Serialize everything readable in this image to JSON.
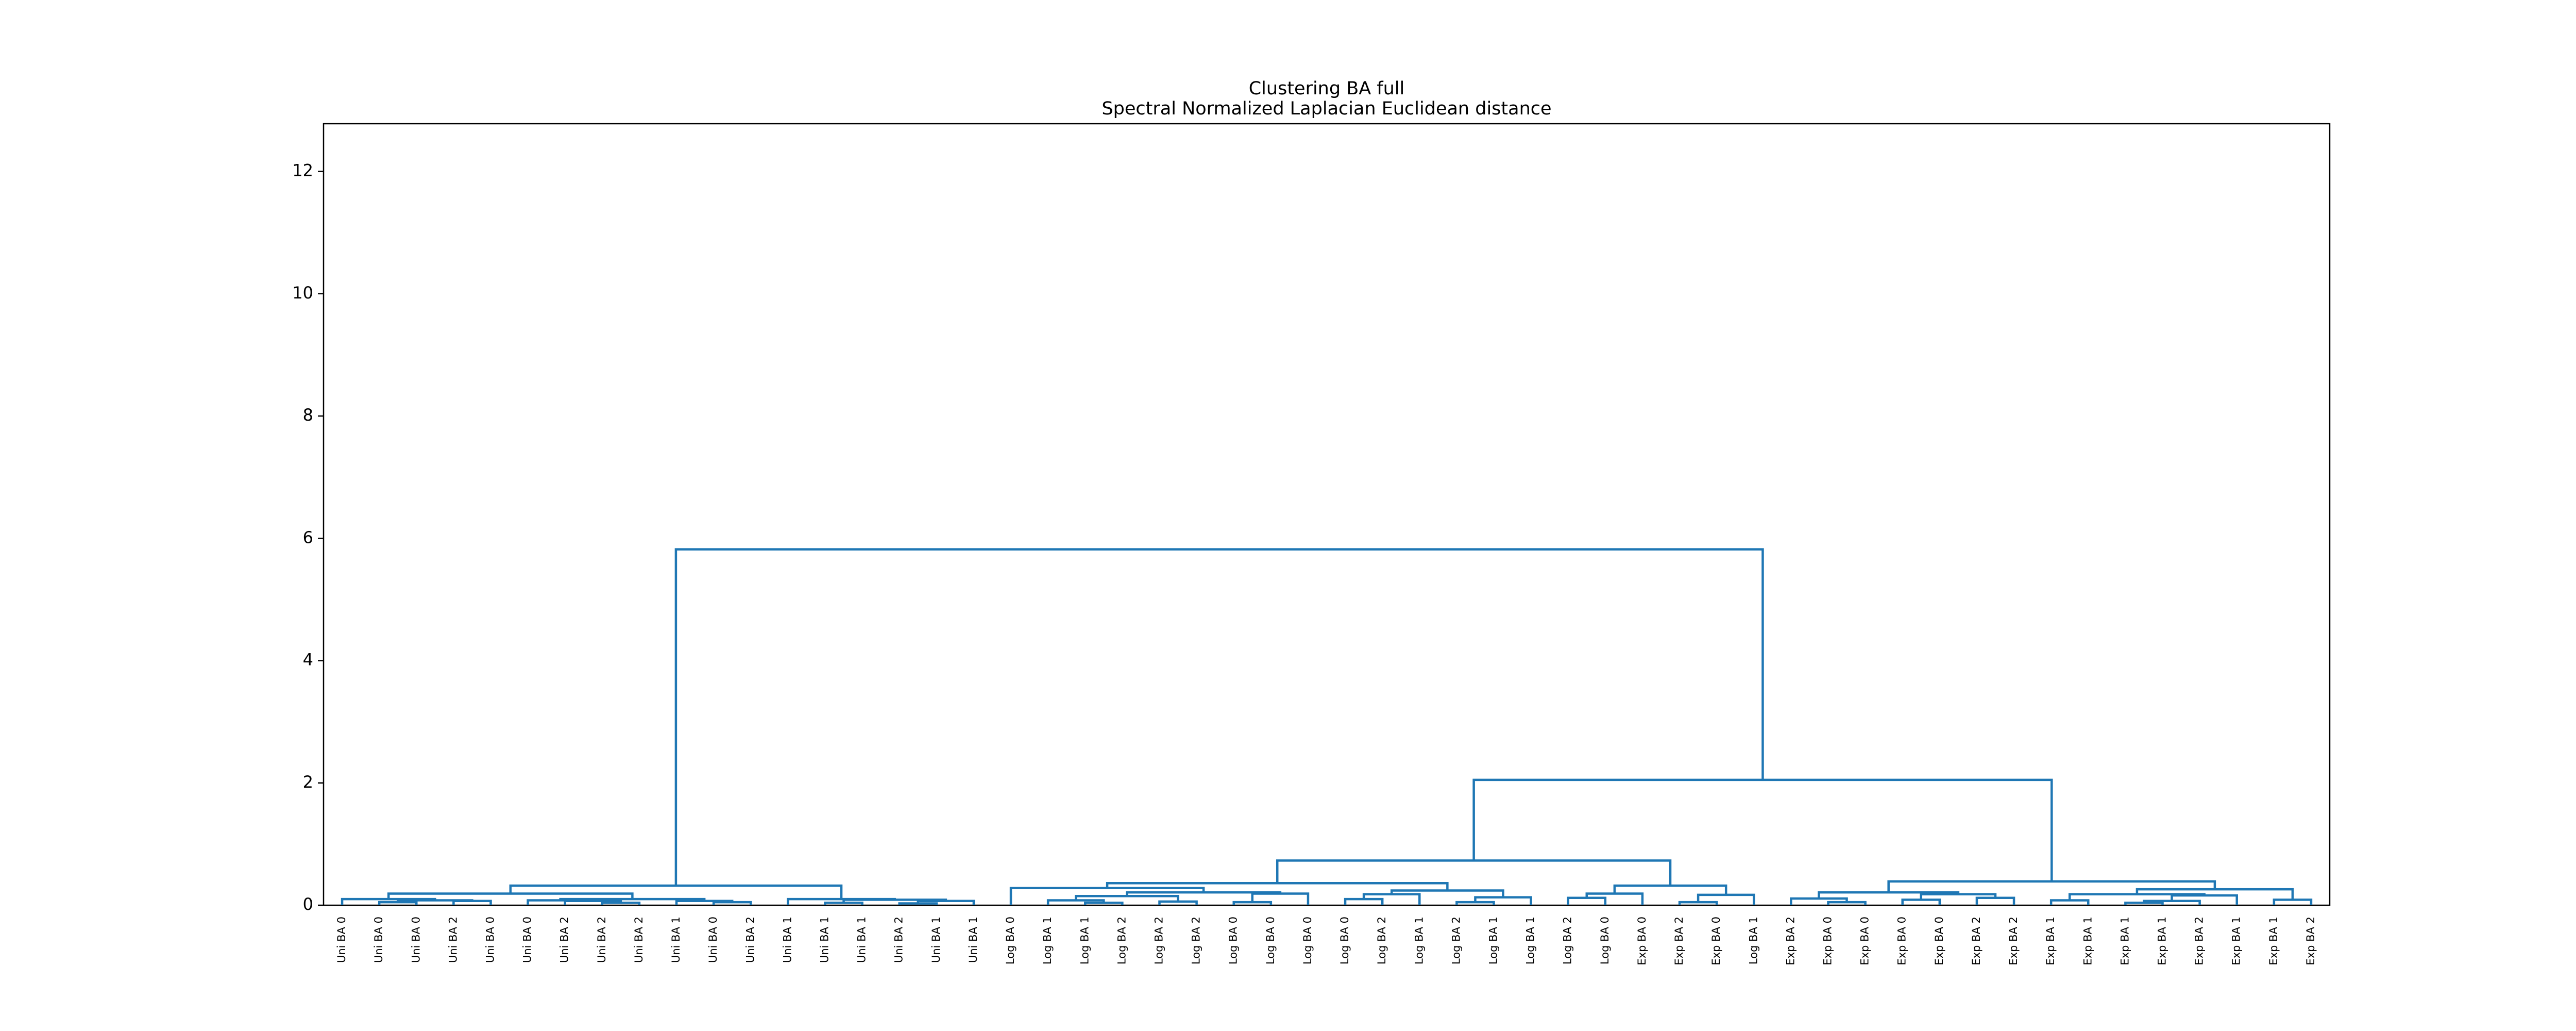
{
  "chart_data": {
    "type": "dendrogram",
    "title": "Clustering BA full",
    "subtitle": "Spectral Normalized Laplacian Euclidean distance",
    "ylim": [
      0,
      12.78
    ],
    "yticks": [
      0,
      2,
      4,
      6,
      8,
      10,
      12
    ],
    "link_color": "#1f77b4",
    "tree": {
      "height": 5.82,
      "children": [
        {
          "height": 0.32,
          "children": [
            {
              "height": 0.19,
              "children": [
                {
                  "height": 0.1,
                  "children": [
                    {
                      "label": "Uni BA 0",
                      "color": "#90ee90"
                    },
                    {
                      "height": 0.08,
                      "children": [
                        {
                          "height": 0.05,
                          "children": [
                            {
                              "label": "Uni BA 0",
                              "color": "#90ee90"
                            },
                            {
                              "label": "Uni BA 0",
                              "color": "#90ee90"
                            }
                          ]
                        },
                        {
                          "height": 0.07,
                          "children": [
                            {
                              "label": "Uni BA 2",
                              "color": "#006400"
                            },
                            {
                              "label": "Uni BA 0",
                              "color": "#90ee90"
                            }
                          ]
                        }
                      ]
                    }
                  ]
                },
                {
                  "height": 0.1,
                  "children": [
                    {
                      "height": 0.08,
                      "children": [
                        {
                          "label": "Uni BA 0",
                          "color": "#90ee90"
                        },
                        {
                          "height": 0.07,
                          "children": [
                            {
                              "label": "Uni BA 2",
                              "color": "#006400"
                            },
                            {
                              "height": 0.04,
                              "children": [
                                {
                                  "label": "Uni BA 2",
                                  "color": "#006400"
                                },
                                {
                                  "label": "Uni BA 2",
                                  "color": "#006400"
                                }
                              ]
                            }
                          ]
                        }
                      ]
                    },
                    {
                      "height": 0.07,
                      "children": [
                        {
                          "label": "Uni BA 1",
                          "color": "#008000"
                        },
                        {
                          "height": 0.05,
                          "children": [
                            {
                              "label": "Uni BA 0",
                              "color": "#90ee90"
                            },
                            {
                              "label": "Uni BA 2",
                              "color": "#006400"
                            }
                          ]
                        }
                      ]
                    }
                  ]
                }
              ]
            },
            {
              "height": 0.1,
              "children": [
                {
                  "label": "Uni BA 1",
                  "color": "#008000"
                },
                {
                  "height": 0.09,
                  "children": [
                    {
                      "height": 0.04,
                      "children": [
                        {
                          "label": "Uni BA 1",
                          "color": "#008000"
                        },
                        {
                          "label": "Uni BA 1",
                          "color": "#008000"
                        }
                      ]
                    },
                    {
                      "height": 0.07,
                      "children": [
                        {
                          "height": 0.03,
                          "children": [
                            {
                              "label": "Uni BA 2",
                              "color": "#006400"
                            },
                            {
                              "label": "Uni BA 1",
                              "color": "#008000"
                            }
                          ]
                        },
                        {
                          "label": "Uni BA 1",
                          "color": "#008000"
                        }
                      ]
                    }
                  ]
                }
              ]
            }
          ]
        },
        {
          "height": 2.05,
          "children": [
            {
              "height": 0.73,
              "children": [
                {
                  "height": 0.36,
                  "children": [
                    {
                      "height": 0.28,
                      "children": [
                        {
                          "label": "Log BA 0",
                          "color": "#add8e6"
                        },
                        {
                          "height": 0.21,
                          "children": [
                            {
                              "height": 0.15,
                              "children": [
                                {
                                  "height": 0.08,
                                  "children": [
                                    {
                                      "label": "Log BA 1",
                                      "color": "#0000ff"
                                    },
                                    {
                                      "height": 0.04,
                                      "children": [
                                        {
                                          "label": "Log BA 1",
                                          "color": "#0000ff"
                                        },
                                        {
                                          "label": "Log BA 2",
                                          "color": "#00008b"
                                        }
                                      ]
                                    }
                                  ]
                                },
                                {
                                  "height": 0.06,
                                  "children": [
                                    {
                                      "label": "Log BA 2",
                                      "color": "#00008b"
                                    },
                                    {
                                      "label": "Log BA 2",
                                      "color": "#00008b"
                                    }
                                  ]
                                }
                              ]
                            },
                            {
                              "height": 0.19,
                              "children": [
                                {
                                  "height": 0.05,
                                  "children": [
                                    {
                                      "label": "Log BA 0",
                                      "color": "#add8e6"
                                    },
                                    {
                                      "label": "Log BA 0",
                                      "color": "#add8e6"
                                    }
                                  ]
                                },
                                {
                                  "label": "Log BA 0",
                                  "color": "#add8e6"
                                }
                              ]
                            }
                          ]
                        }
                      ]
                    },
                    {
                      "height": 0.24,
                      "children": [
                        {
                          "height": 0.18,
                          "children": [
                            {
                              "height": 0.1,
                              "children": [
                                {
                                  "label": "Log BA 0",
                                  "color": "#add8e6"
                                },
                                {
                                  "label": "Log BA 2",
                                  "color": "#00008b"
                                }
                              ]
                            },
                            {
                              "label": "Log BA 1",
                              "color": "#0000ff"
                            }
                          ]
                        },
                        {
                          "height": 0.13,
                          "children": [
                            {
                              "height": 0.05,
                              "children": [
                                {
                                  "label": "Log BA 2",
                                  "color": "#00008b"
                                },
                                {
                                  "label": "Log BA 1",
                                  "color": "#0000ff"
                                }
                              ]
                            },
                            {
                              "label": "Log BA 1",
                              "color": "#0000ff"
                            }
                          ]
                        }
                      ]
                    }
                  ]
                },
                {
                  "height": 0.32,
                  "children": [
                    {
                      "height": 0.19,
                      "children": [
                        {
                          "height": 0.12,
                          "children": [
                            {
                              "label": "Log BA 2",
                              "color": "#00008b"
                            },
                            {
                              "label": "Log BA 0",
                              "color": "#add8e6"
                            }
                          ]
                        },
                        {
                          "label": "Exp BA 0",
                          "color": "#f08080"
                        }
                      ]
                    },
                    {
                      "height": 0.17,
                      "children": [
                        {
                          "height": 0.05,
                          "children": [
                            {
                              "label": "Exp BA 2",
                              "color": "#8b0000"
                            },
                            {
                              "label": "Exp BA 0",
                              "color": "#f08080"
                            }
                          ]
                        },
                        {
                          "label": "Log BA 1",
                          "color": "#0000ff"
                        }
                      ]
                    }
                  ]
                }
              ]
            },
            {
              "height": 0.39,
              "children": [
                {
                  "height": 0.21,
                  "children": [
                    {
                      "height": 0.11,
                      "children": [
                        {
                          "label": "Exp BA 2",
                          "color": "#8b0000"
                        },
                        {
                          "height": 0.05,
                          "children": [
                            {
                              "label": "Exp BA 0",
                              "color": "#f08080"
                            },
                            {
                              "label": "Exp BA 0",
                              "color": "#f08080"
                            }
                          ]
                        }
                      ]
                    },
                    {
                      "height": 0.18,
                      "children": [
                        {
                          "height": 0.09,
                          "children": [
                            {
                              "label": "Exp BA 0",
                              "color": "#f08080"
                            },
                            {
                              "label": "Exp BA 0",
                              "color": "#f08080"
                            }
                          ]
                        },
                        {
                          "height": 0.12,
                          "children": [
                            {
                              "label": "Exp BA 2",
                              "color": "#8b0000"
                            },
                            {
                              "label": "Exp BA 2",
                              "color": "#8b0000"
                            }
                          ]
                        }
                      ]
                    }
                  ]
                },
                {
                  "height": 0.26,
                  "children": [
                    {
                      "height": 0.18,
                      "children": [
                        {
                          "height": 0.08,
                          "children": [
                            {
                              "label": "Exp BA 1",
                              "color": "#ff0000"
                            },
                            {
                              "label": "Exp BA 1",
                              "color": "#ff0000"
                            }
                          ]
                        },
                        {
                          "height": 0.16,
                          "children": [
                            {
                              "height": 0.07,
                              "children": [
                                {
                                  "height": 0.04,
                                  "children": [
                                    {
                                      "label": "Exp BA 1",
                                      "color": "#ff0000"
                                    },
                                    {
                                      "label": "Exp BA 1",
                                      "color": "#ff0000"
                                    }
                                  ]
                                },
                                {
                                  "label": "Exp BA 2",
                                  "color": "#8b0000"
                                }
                              ]
                            },
                            {
                              "label": "Exp BA 1",
                              "color": "#ff0000"
                            }
                          ]
                        }
                      ]
                    },
                    {
                      "height": 0.09,
                      "children": [
                        {
                          "label": "Exp BA 1",
                          "color": "#ff0000"
                        },
                        {
                          "label": "Exp BA 2",
                          "color": "#8b0000"
                        }
                      ]
                    }
                  ]
                }
              ]
            }
          ]
        }
      ]
    }
  }
}
